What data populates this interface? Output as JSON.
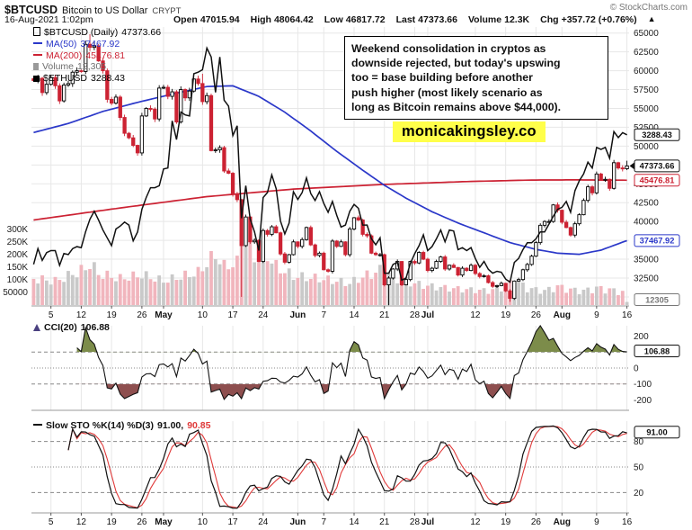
{
  "header": {
    "symbol": "$BTCUSD",
    "name": "Bitcoin to US Dollar",
    "exchange": "CRYPT",
    "copyright": "© StockCharts.com",
    "datetime": "16-Aug-2021 1:02pm",
    "quote": [
      {
        "label": "Open",
        "value": "47015.94"
      },
      {
        "label": "High",
        "value": "48064.42"
      },
      {
        "label": "Low",
        "value": "46817.72"
      },
      {
        "label": "Last",
        "value": "47373.66"
      },
      {
        "label": "Volume",
        "value": "12.3K"
      },
      {
        "label": "Chg",
        "value": "+357.72 (+0.76%)"
      }
    ],
    "chg_arrow": "▲"
  },
  "legend": {
    "main": [
      {
        "label": "$BTCUSD (Daily)",
        "value": "47373.66",
        "color": "#000000"
      },
      {
        "label": "MA(50)",
        "value": "37467.92",
        "color": "#2b38c9"
      },
      {
        "label": "MA(200)",
        "value": "45476.81",
        "color": "#cc2233"
      },
      {
        "label": "Volume",
        "value": "12,305",
        "color": "#6e6e6e"
      },
      {
        "label": "$ETHUSD",
        "value": "3288.43",
        "color": "#000000"
      }
    ],
    "cci": {
      "label": "CCI(20)",
      "value": "106.88"
    },
    "sto": {
      "label": "Slow STO %K(14) %D(3)",
      "k": "91.00,",
      "d": "90.85"
    }
  },
  "annotation": {
    "lines": [
      "Weekend consolidation in cryptos as",
      "downside rejected, but today's upswing",
      "too = base building before another",
      "push higher (most likely scenario as",
      "long as Bitcoin remains above $44,000)."
    ]
  },
  "watermark": "monicakingsley.co",
  "chart_data": {
    "type": "candlestick",
    "frequency": "daily",
    "start_date": "2021-04-01",
    "end_date": "2021-08-16",
    "series_info": [
      {
        "name": "$BTCUSD",
        "type": "candlestick"
      },
      {
        "name": "MA(50)",
        "type": "line",
        "last": 37467.92
      },
      {
        "name": "MA(200)",
        "type": "line",
        "last": 45476.81
      },
      {
        "name": "Volume",
        "type": "bars",
        "last": 12305
      },
      {
        "name": "$ETHUSD",
        "type": "line",
        "last": 3288.43
      }
    ],
    "price_axis": {
      "min": 28800,
      "max": 65800,
      "ticks": [
        30000,
        32500,
        35000,
        37500,
        40000,
        42500,
        45000,
        47500,
        50000,
        52500,
        55000,
        57500,
        60000,
        62500,
        65000
      ]
    },
    "volume_axis": [
      {
        "label": "300K",
        "v": 300000
      },
      {
        "label": "250K",
        "v": 250000
      },
      {
        "label": "200K",
        "v": 200000
      },
      {
        "label": "150K",
        "v": 150000
      },
      {
        "label": "100K",
        "v": 100000
      },
      {
        "label": "50000",
        "v": 50000
      }
    ],
    "x_ticks": [
      {
        "label": "5",
        "i": 4
      },
      {
        "label": "12",
        "i": 11
      },
      {
        "label": "19",
        "i": 18
      },
      {
        "label": "26",
        "i": 25
      },
      {
        "label": "May",
        "i": 30,
        "m": true
      },
      {
        "label": "10",
        "i": 39
      },
      {
        "label": "17",
        "i": 46
      },
      {
        "label": "24",
        "i": 53
      },
      {
        "label": "Jun",
        "i": 61,
        "m": true
      },
      {
        "label": "7",
        "i": 67
      },
      {
        "label": "14",
        "i": 74
      },
      {
        "label": "21",
        "i": 81
      },
      {
        "label": "28",
        "i": 88
      },
      {
        "label": "Jul",
        "i": 91,
        "m": true
      },
      {
        "label": "12",
        "i": 102
      },
      {
        "label": "19",
        "i": 109
      },
      {
        "label": "26",
        "i": 116
      },
      {
        "label": "Aug",
        "i": 122,
        "m": true
      },
      {
        "label": "9",
        "i": 130
      },
      {
        "label": "16",
        "i": 137
      }
    ],
    "btc_close": [
      58700,
      59000,
      57100,
      58200,
      59100,
      58000,
      56000,
      58100,
      58300,
      59800,
      60000,
      59900,
      63500,
      63100,
      63300,
      61300,
      60000,
      56200,
      55700,
      56500,
      53800,
      51700,
      51100,
      50100,
      49100,
      54000,
      55000,
      54900,
      53600,
      57700,
      57800,
      56600,
      57200,
      53200,
      57500,
      56400,
      57300,
      58900,
      58300,
      55900,
      56700,
      49400,
      49500,
      49800,
      46700,
      46400,
      43600,
      42900,
      36800,
      40600,
      37300,
      37500,
      34700,
      38800,
      38300,
      39300,
      38500,
      35700,
      34600,
      35600,
      37300,
      36700,
      37600,
      39200,
      36900,
      35500,
      35800,
      33600,
      33400,
      37400,
      36700,
      37300,
      35600,
      39000,
      40500,
      40200,
      38300,
      38100,
      35800,
      35600,
      35600,
      31600,
      32500,
      33700,
      34700,
      31600,
      32300,
      34700,
      34500,
      35900,
      35000,
      33500,
      33800,
      34700,
      35300,
      33700,
      34200,
      33900,
      32900,
      33800,
      33500,
      34200,
      33100,
      32700,
      32800,
      31900,
      31400,
      31500,
      31800,
      30800,
      29800,
      32100,
      32300,
      33600,
      34300,
      35400,
      37200,
      39500,
      40000,
      40000,
      42200,
      41500,
      39900,
      39200,
      38200,
      39700,
      40900,
      42800,
      44600,
      43800,
      46300,
      45600,
      45600,
      44400,
      47800,
      47100,
      47000,
      47374
    ],
    "eth_close": [
      1970,
      2130,
      2010,
      2090,
      2110,
      2110,
      1960,
      2080,
      2070,
      2130,
      2150,
      2140,
      2300,
      2430,
      2510,
      2420,
      2320,
      2240,
      2160,
      2330,
      2360,
      2400,
      2370,
      2210,
      2300,
      2530,
      2650,
      2750,
      2750,
      2770,
      2940,
      2950,
      3430,
      3240,
      3520,
      3490,
      3480,
      3910,
      3925,
      3950,
      4170,
      4080,
      3720,
      4080,
      3640,
      3580,
      3280,
      3380,
      2440,
      2770,
      2430,
      2300,
      2110,
      2650,
      2700,
      2880,
      2740,
      2410,
      2280,
      2390,
      2710,
      2630,
      2700,
      2850,
      2690,
      2620,
      2710,
      2590,
      2500,
      2610,
      2470,
      2350,
      2370,
      2510,
      2580,
      2540,
      2370,
      2370,
      2230,
      2170,
      2240,
      1880,
      1880,
      1970,
      1990,
      1810,
      1830,
      1980,
      2080,
      2160,
      2270,
      2110,
      2150,
      2230,
      2320,
      2200,
      2320,
      2310,
      2120,
      2140,
      2110,
      2140,
      2030,
      1940,
      2000,
      1920,
      1880,
      1900,
      1890,
      1820,
      1790,
      1990,
      2030,
      2120,
      2190,
      2190,
      2230,
      2300,
      2300,
      2380,
      2460,
      2530,
      2550,
      2610,
      2500,
      2720,
      2820,
      2890,
      3010,
      2950,
      3160,
      3140,
      3160,
      3050,
      3320,
      3260,
      3310,
      3288
    ],
    "eth_map": {
      "a": 13.04,
      "b": 8625
    },
    "high_overrides": {
      "13": 64850,
      "39": 59600,
      "137": 48064
    },
    "low_overrides": {
      "48": 30000,
      "82": 28900,
      "110": 29350,
      "137": 46818
    },
    "ma50": [
      [
        0,
        51800
      ],
      [
        8,
        53000
      ],
      [
        16,
        54600
      ],
      [
        24,
        55800
      ],
      [
        32,
        56900
      ],
      [
        40,
        57900
      ],
      [
        46,
        58000
      ],
      [
        52,
        56600
      ],
      [
        58,
        54500
      ],
      [
        64,
        52000
      ],
      [
        70,
        49300
      ],
      [
        76,
        46800
      ],
      [
        81,
        44800
      ],
      [
        86,
        43100
      ],
      [
        92,
        41300
      ],
      [
        98,
        39800
      ],
      [
        104,
        38500
      ],
      [
        110,
        37200
      ],
      [
        116,
        36300
      ],
      [
        121,
        35800
      ],
      [
        126,
        35650
      ],
      [
        131,
        36200
      ],
      [
        137,
        37468
      ]
    ],
    "ma200": [
      [
        0,
        40200
      ],
      [
        20,
        41800
      ],
      [
        40,
        43300
      ],
      [
        60,
        44300
      ],
      [
        80,
        44900
      ],
      [
        100,
        45300
      ],
      [
        115,
        45500
      ],
      [
        125,
        45520
      ],
      [
        137,
        45477
      ]
    ],
    "volume_env": [
      [
        0,
        110000
      ],
      [
        5,
        100000
      ],
      [
        12,
        150000
      ],
      [
        13,
        175000
      ],
      [
        15,
        130000
      ],
      [
        20,
        110000
      ],
      [
        25,
        125000
      ],
      [
        30,
        100000
      ],
      [
        38,
        135000
      ],
      [
        42,
        210000
      ],
      [
        44,
        160000
      ],
      [
        47,
        175000
      ],
      [
        48,
        350000
      ],
      [
        49,
        280000
      ],
      [
        51,
        200000
      ],
      [
        53,
        230000
      ],
      [
        56,
        160000
      ],
      [
        60,
        120000
      ],
      [
        66,
        110000
      ],
      [
        70,
        100000
      ],
      [
        73,
        90000
      ],
      [
        75,
        110000
      ],
      [
        81,
        150000
      ],
      [
        84,
        110000
      ],
      [
        88,
        90000
      ],
      [
        91,
        80000
      ],
      [
        95,
        72000
      ],
      [
        100,
        65000
      ],
      [
        105,
        60000
      ],
      [
        109,
        78000
      ],
      [
        111,
        105000
      ],
      [
        114,
        70000
      ],
      [
        118,
        60000
      ],
      [
        121,
        78000
      ],
      [
        124,
        65000
      ],
      [
        127,
        60000
      ],
      [
        130,
        72000
      ],
      [
        133,
        65000
      ],
      [
        136,
        55000
      ],
      [
        137,
        12305
      ]
    ],
    "last_volume": 12305,
    "cci": {
      "period": 20,
      "ticks": [
        200,
        100,
        0,
        -100,
        -200
      ],
      "last": 106.88
    },
    "sto": {
      "k_period": 14,
      "d_period": 3,
      "ticks": [
        80,
        50,
        20
      ],
      "last_k": 91.0,
      "last_d": 90.85
    },
    "tags": {
      "eth": "3288.43",
      "last": "47373.66",
      "ma200": "45476.81",
      "ma200_v": 45476.81,
      "ma50": "37467.92",
      "ma50_v": 37467.92,
      "volume": "12305",
      "cci": "106.88",
      "cci_v": 106.88,
      "sto": "91.00",
      "sto_v": 91.0
    },
    "colors": {
      "up": "#000000",
      "down": "#cc2233",
      "ma50": "#2b38c9",
      "ma200": "#cc2233",
      "eth": "#111111",
      "volume_up": "#c9c9c9",
      "volume_down": "#f1b5bd",
      "grid": "#e7e7e7",
      "cci_pos": "#7c8c4a",
      "cci_neg": "#8e4f4f",
      "sto_k": "#111111",
      "sto_d": "#e03a3a",
      "accent_yellow": "#ffff4a"
    }
  }
}
